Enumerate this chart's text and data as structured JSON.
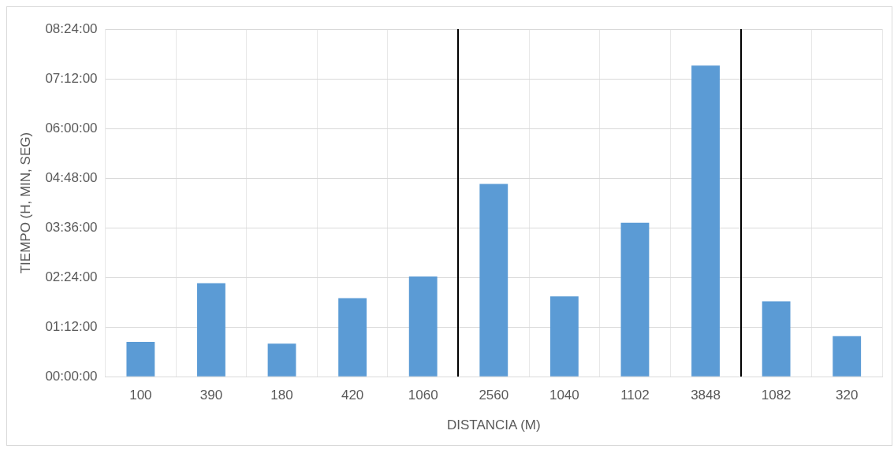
{
  "chart_data": {
    "type": "bar",
    "xlabel": "DISTANCIA (M)",
    "ylabel": "TIEMPO (H, MIN, SEG)",
    "categories": [
      "100",
      "390",
      "180",
      "420",
      "1060",
      "2560",
      "1040",
      "1102",
      "3848",
      "1082",
      "320"
    ],
    "values": [
      0.84,
      2.26,
      0.8,
      1.9,
      2.42,
      4.66,
      1.94,
      3.72,
      7.52,
      1.82,
      0.98
    ],
    "color": "#5b9bd5",
    "ylim": [
      0,
      8.4
    ],
    "yticks": [
      {
        "value": 0,
        "label": "00:00:00"
      },
      {
        "value": 1.2,
        "label": "01:12:00"
      },
      {
        "value": 2.4,
        "label": "02:24:00"
      },
      {
        "value": 3.6,
        "label": "03:36:00"
      },
      {
        "value": 4.8,
        "label": "04:48:00"
      },
      {
        "value": 6,
        "label": "06:00:00"
      },
      {
        "value": 7.2,
        "label": "07:12:00"
      },
      {
        "value": 8.4,
        "label": "08:24:00"
      }
    ],
    "grid": true
  }
}
